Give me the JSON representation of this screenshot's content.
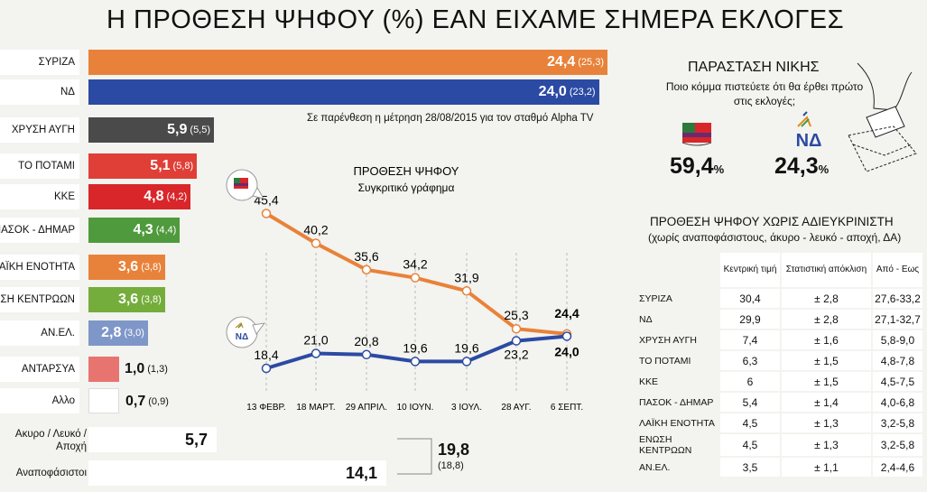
{
  "title": "Η ΠΡΟΘΕΣΗ ΨΗΦΟΥ (%) ΕΑΝ ΕΙΧΑΜΕ ΣΗΜΕΡΑ ΕΚΛΟΓΕΣ",
  "note": "Σε παρένθεση η μέτρηση 28/08/2015 για τον σταθμό Alpha TV",
  "parties": [
    {
      "name": "ΣΥΡΙΖΑ",
      "value": "24,4",
      "prev": "(25,3)",
      "color": "#e8823a"
    },
    {
      "name": "ΝΔ",
      "value": "24,0",
      "prev": "(23,2)",
      "color": "#2b4aa3"
    },
    {
      "name": "ΧΡΥΣΗ ΑΥΓΗ",
      "value": "5,9",
      "prev": "(5,5)",
      "color": "#4a4a4a"
    },
    {
      "name": "ΤΟ ΠΟΤΑΜΙ",
      "value": "5,1",
      "prev": "(5,8)",
      "color": "#df3f37"
    },
    {
      "name": "ΚΚΕ",
      "value": "4,8",
      "prev": "(4,2)",
      "color": "#d8262a"
    },
    {
      "name": "ΠΑΣΟΚ - ΔΗΜΑΡ",
      "value": "4,3",
      "prev": "(4,4)",
      "color": "#4f9a3c"
    },
    {
      "name": "ΛΑΪΚΗ ΕΝΟΤΗΤΑ",
      "value": "3,6",
      "prev": "(3,8)",
      "color": "#e8823a"
    },
    {
      "name": "ΕΝΩΣΗ ΚΕΝΤΡΩΩΝ",
      "value": "3,6",
      "prev": "(3,8)",
      "color": "#74ad3c"
    },
    {
      "name": "ΑΝ.ΕΛ.",
      "value": "2,8",
      "prev": "(3,0)",
      "color": "#7f97c8"
    },
    {
      "name": "ΑΝΤΑΡΣΥΑ",
      "value": "1,0",
      "prev": "(1,3)",
      "color": "#e87470"
    },
    {
      "name": "Αλλο",
      "value": "0,7",
      "prev": "(0,9)",
      "color": "#ffffff"
    }
  ],
  "undecided": {
    "rows": [
      {
        "label": "Ακυρο / Λευκό / Αποχή",
        "value": "5,7"
      },
      {
        "label": "Αναποφάσιστοι",
        "value": "14,1"
      }
    ],
    "total": "19,8",
    "total_prev": "(18,8)"
  },
  "win": {
    "title": "ΠΑΡΑΣΤΑΣΗ ΝΙΚΗΣ",
    "question": "Ποιο κόμμα πιστεύετε ότι θα έρθει πρώτο στις εκλογές;",
    "syriza": "59,4",
    "nd": "24,3",
    "pct": "%",
    "nd_logo": "ΝΔ"
  },
  "chart_data": {
    "type": "line",
    "title": "ΠΡΟΘΕΣΗ ΨΗΦΟΥ",
    "subtitle": "Συγκριτικό γράφημα",
    "categories": [
      "13 ΦΕΒΡ.",
      "18 ΜΑΡΤ.",
      "29 ΑΠΡΙΛ.",
      "10 ΙΟΥΝ.",
      "3 ΙΟΥΛ.",
      "28 ΑΥΓ.",
      "6 ΣΕΠΤ."
    ],
    "series": [
      {
        "name": "ΣΥΡΙΖΑ",
        "color": "#e8823a",
        "values": [
          45.4,
          40.2,
          35.6,
          34.2,
          31.9,
          25.3,
          24.4
        ],
        "labels": [
          "45,4",
          "40,2",
          "35,6",
          "34,2",
          "31,9",
          "25,3",
          "24,4"
        ]
      },
      {
        "name": "ΝΔ",
        "color": "#2b4aa3",
        "values": [
          18.4,
          21.0,
          20.8,
          19.6,
          19.6,
          23.2,
          24.0
        ],
        "labels": [
          "18,4",
          "21,0",
          "20,8",
          "19,6",
          "19,6",
          "23,2",
          "24,0"
        ]
      }
    ],
    "ylim": [
      14,
      48
    ],
    "nd_logo": "ΝΔ"
  },
  "table": {
    "title": "ΠΡΟΘΕΣΗ ΨΗΦΟΥ ΧΩΡΙΣ ΑΔΙΕΥΚΡΙΝΙΣΤΗ",
    "subtitle": "(χωρίς αναποφάσιστους, άκυρο - λευκό - αποχή, ΔΑ)",
    "columns": [
      "Κεντρική τιμή",
      "Στατιστική απόκλιση",
      "Από - Εως"
    ],
    "rows": [
      {
        "party": "ΣΥΡΙΖΑ",
        "value": "30,4",
        "margin": "± 2,8",
        "range": "27,6-33,2"
      },
      {
        "party": "ΝΔ",
        "value": "29,9",
        "margin": "± 2,8",
        "range": "27,1-32,7"
      },
      {
        "party": "ΧΡΥΣΗ ΑΥΓΗ",
        "value": "7,4",
        "margin": "± 1,6",
        "range": "5,8-9,0"
      },
      {
        "party": "ΤΟ ΠΟΤΑΜΙ",
        "value": "6,3",
        "margin": "± 1,5",
        "range": "4,8-7,8"
      },
      {
        "party": "ΚΚΕ",
        "value": "6",
        "margin": "± 1,5",
        "range": "4,5-7,5"
      },
      {
        "party": "ΠΑΣΟΚ - ΔΗΜΑΡ",
        "value": "5,4",
        "margin": "± 1,4",
        "range": "4,0-6,8"
      },
      {
        "party": "ΛΑΪΚΗ ΕΝΟΤΗΤΑ",
        "value": "4,5",
        "margin": "± 1,3",
        "range": "3,2-5,8"
      },
      {
        "party": "ΕΝΩΣΗ ΚΕΝΤΡΩΩΝ",
        "value": "4,5",
        "margin": "± 1,3",
        "range": "3,2-5,8"
      },
      {
        "party": "ΑΝ.ΕΛ.",
        "value": "3,5",
        "margin": "± 1,1",
        "range": "2,4-4,6"
      }
    ]
  }
}
